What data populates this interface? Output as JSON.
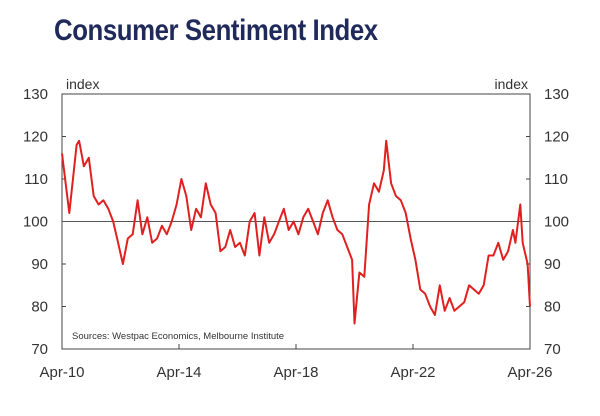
{
  "header": {
    "title": "Consumer Sentiment Index"
  },
  "chart_data": {
    "type": "line",
    "title": "Consumer Sentiment Index",
    "ylabel_left": "index",
    "ylabel_right": "index",
    "source": "Sources: Westpac Economics, Melbourne Institute",
    "ylim": [
      70,
      130
    ],
    "yticks": [
      70,
      80,
      90,
      100,
      110,
      120,
      130
    ],
    "xlim": [
      "2010-04",
      "2026-04"
    ],
    "xticks": [
      {
        "date": "2010-04",
        "label": "Apr-10"
      },
      {
        "date": "2014-04",
        "label": "Apr-14"
      },
      {
        "date": "2018-04",
        "label": "Apr-18"
      },
      {
        "date": "2022-04",
        "label": "Apr-22"
      },
      {
        "date": "2026-04",
        "label": "Apr-26"
      }
    ],
    "reference_line": 100,
    "grid": false,
    "colors": {
      "series": "#e02020",
      "axis": "#444444",
      "reference": "#555555",
      "title": "#1f2a5a"
    },
    "series": [
      {
        "points": [
          [
            "2010-04",
            116
          ],
          [
            "2010-07",
            102
          ],
          [
            "2010-10",
            118
          ],
          [
            "2010-11",
            119
          ],
          [
            "2011-01",
            113
          ],
          [
            "2011-03",
            115
          ],
          [
            "2011-05",
            106
          ],
          [
            "2011-07",
            104
          ],
          [
            "2011-09",
            105
          ],
          [
            "2011-11",
            103
          ],
          [
            "2012-01",
            100
          ],
          [
            "2012-03",
            95
          ],
          [
            "2012-05",
            90
          ],
          [
            "2012-07",
            96
          ],
          [
            "2012-09",
            97
          ],
          [
            "2012-11",
            105
          ],
          [
            "2013-01",
            97
          ],
          [
            "2013-03",
            101
          ],
          [
            "2013-05",
            95
          ],
          [
            "2013-07",
            96
          ],
          [
            "2013-09",
            99
          ],
          [
            "2013-11",
            97
          ],
          [
            "2014-01",
            100
          ],
          [
            "2014-03",
            104
          ],
          [
            "2014-05",
            110
          ],
          [
            "2014-07",
            106
          ],
          [
            "2014-09",
            98
          ],
          [
            "2014-11",
            103
          ],
          [
            "2015-01",
            101
          ],
          [
            "2015-03",
            109
          ],
          [
            "2015-05",
            104
          ],
          [
            "2015-07",
            102
          ],
          [
            "2015-09",
            93
          ],
          [
            "2015-11",
            94
          ],
          [
            "2016-01",
            98
          ],
          [
            "2016-03",
            94
          ],
          [
            "2016-05",
            95
          ],
          [
            "2016-07",
            92
          ],
          [
            "2016-09",
            100
          ],
          [
            "2016-11",
            102
          ],
          [
            "2017-01",
            92
          ],
          [
            "2017-03",
            101
          ],
          [
            "2017-05",
            95
          ],
          [
            "2017-07",
            97
          ],
          [
            "2017-09",
            100
          ],
          [
            "2017-11",
            103
          ],
          [
            "2018-01",
            98
          ],
          [
            "2018-03",
            100
          ],
          [
            "2018-05",
            97
          ],
          [
            "2018-07",
            101
          ],
          [
            "2018-09",
            103
          ],
          [
            "2018-11",
            100
          ],
          [
            "2019-01",
            97
          ],
          [
            "2019-03",
            102
          ],
          [
            "2019-05",
            105
          ],
          [
            "2019-07",
            101
          ],
          [
            "2019-09",
            98
          ],
          [
            "2019-11",
            97
          ],
          [
            "2020-01",
            94
          ],
          [
            "2020-03",
            91
          ],
          [
            "2020-04",
            76
          ],
          [
            "2020-06",
            88
          ],
          [
            "2020-08",
            87
          ],
          [
            "2020-10",
            104
          ],
          [
            "2020-12",
            109
          ],
          [
            "2021-02",
            107
          ],
          [
            "2021-04",
            112
          ],
          [
            "2021-05",
            119
          ],
          [
            "2021-07",
            109
          ],
          [
            "2021-09",
            106
          ],
          [
            "2021-11",
            105
          ],
          [
            "2022-01",
            102
          ],
          [
            "2022-03",
            96
          ],
          [
            "2022-05",
            91
          ],
          [
            "2022-07",
            84
          ],
          [
            "2022-09",
            83
          ],
          [
            "2022-11",
            80
          ],
          [
            "2023-01",
            78
          ],
          [
            "2023-03",
            85
          ],
          [
            "2023-05",
            79
          ],
          [
            "2023-07",
            82
          ],
          [
            "2023-09",
            79
          ],
          [
            "2023-11",
            80
          ],
          [
            "2024-01",
            81
          ],
          [
            "2024-03",
            85
          ],
          [
            "2024-05",
            84
          ],
          [
            "2024-07",
            83
          ],
          [
            "2024-09",
            85
          ],
          [
            "2024-11",
            92
          ],
          [
            "2025-01",
            92
          ],
          [
            "2025-03",
            95
          ],
          [
            "2025-05",
            91
          ],
          [
            "2025-07",
            93
          ],
          [
            "2025-09",
            98
          ],
          [
            "2025-10",
            95
          ],
          [
            "2025-12",
            104
          ],
          [
            "2026-01",
            95
          ],
          [
            "2026-03",
            90
          ],
          [
            "2026-04",
            80
          ]
        ]
      }
    ]
  }
}
